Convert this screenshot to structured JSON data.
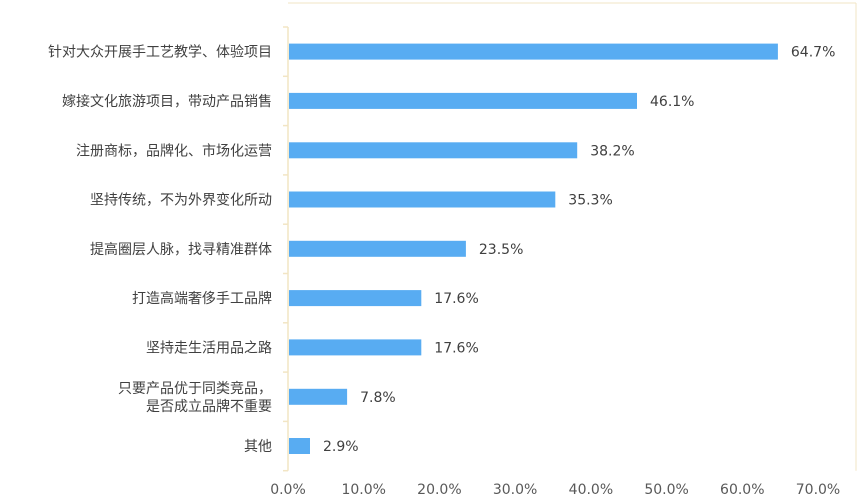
{
  "chart_data": {
    "type": "bar",
    "orientation": "horizontal",
    "categories": [
      [
        "针对大众开展手工艺教学、体验项目"
      ],
      [
        "嫁接文化旅游项目，带动产品销售"
      ],
      [
        "注册商标，品牌化、市场化运营"
      ],
      [
        "坚持传统，不为外界变化所动"
      ],
      [
        "提高圈层人脉，找寻精准群体"
      ],
      [
        "打造高端奢侈手工品牌"
      ],
      [
        "坚持走生活用品之路"
      ],
      [
        "只要产品优于同类竞品，",
        "是否成立品牌不重要"
      ],
      [
        "其他"
      ]
    ],
    "values": [
      64.7,
      46.1,
      38.2,
      35.3,
      23.5,
      17.6,
      17.6,
      7.8,
      2.9
    ],
    "value_labels": [
      "64.7%",
      "46.1%",
      "38.2%",
      "35.3%",
      "23.5%",
      "17.6%",
      "17.6%",
      "7.8%",
      "2.9%"
    ],
    "xlim": [
      0,
      70
    ],
    "xticks": [
      0,
      10,
      20,
      30,
      40,
      50,
      60,
      70
    ],
    "xtick_labels": [
      "0.0%",
      "10.0%",
      "20.0%",
      "30.0%",
      "40.0%",
      "50.0%",
      "60.0%",
      "70.0%"
    ],
    "grid": false,
    "bar_color": "#58ACF2",
    "axis_color": "#F2E5C4",
    "text_color": "#404040"
  }
}
